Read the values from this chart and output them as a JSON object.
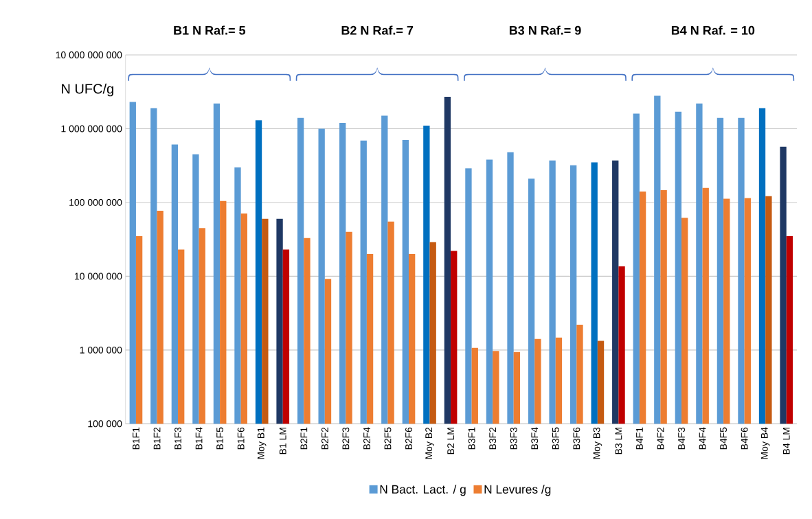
{
  "chart_data": {
    "type": "bar",
    "ylabel": "N UFC/g",
    "log": true,
    "grid": "y",
    "legend": "bottom",
    "categories": [
      "B1F1",
      "B1F2",
      "B1F3",
      "B1F4",
      "B1F5",
      "B1F6",
      "Moy  B1",
      "B1 LM",
      "B2F1",
      "B2F2",
      "B2F3",
      "B2F4",
      "B2F5",
      "B2F6",
      "Moy B2",
      "B2 LM",
      "B3F1",
      "B3F2",
      "B3F3",
      "B3F4",
      "B3F5",
      "B3F6",
      "Moy B3",
      "B3 LM",
      "B4F1",
      "B4F2",
      "B4F3",
      "B4F4",
      "B4F5",
      "B4F6",
      "Moy B4",
      "B4 LM"
    ],
    "series": [
      {
        "name": "N Bact. Lact. / g",
        "color": "#5b9bd5",
        "colors": [
          "#5b9bd5",
          "#5b9bd5",
          "#5b9bd5",
          "#5b9bd5",
          "#5b9bd5",
          "#5b9bd5",
          "#0070c0",
          "#1f3864",
          "#5b9bd5",
          "#5b9bd5",
          "#5b9bd5",
          "#5b9bd5",
          "#5b9bd5",
          "#5b9bd5",
          "#0070c0",
          "#1f3864",
          "#5b9bd5",
          "#5b9bd5",
          "#5b9bd5",
          "#5b9bd5",
          "#5b9bd5",
          "#5b9bd5",
          "#0070c0",
          "#1f3864",
          "#5b9bd5",
          "#5b9bd5",
          "#5b9bd5",
          "#5b9bd5",
          "#5b9bd5",
          "#5b9bd5",
          "#0070c0",
          "#1f3864"
        ],
        "values": [
          2300000000,
          1900000000,
          610000000,
          450000000,
          2200000000,
          300000000,
          1300000000,
          60000000,
          1400000000,
          1000000000,
          1200000000,
          690000000,
          1500000000,
          700000000,
          1100000000,
          2700000000,
          290000000,
          380000000,
          480000000,
          210000000,
          370000000,
          320000000,
          350000000,
          370000000,
          1600000000,
          2800000000,
          1700000000,
          2200000000,
          1400000000,
          1400000000,
          1900000000,
          570000000
        ]
      },
      {
        "name": "N Levures /g",
        "color": "#ed7d31",
        "colors": [
          "#ed7d31",
          "#ed7d31",
          "#ed7d31",
          "#ed7d31",
          "#ed7d31",
          "#ed7d31",
          "#c55a11",
          "#c00000",
          "#ed7d31",
          "#ed7d31",
          "#ed7d31",
          "#ed7d31",
          "#ed7d31",
          "#ed7d31",
          "#c55a11",
          "#c00000",
          "#ed7d31",
          "#ed7d31",
          "#ed7d31",
          "#ed7d31",
          "#ed7d31",
          "#ed7d31",
          "#c55a11",
          "#c00000",
          "#ed7d31",
          "#ed7d31",
          "#ed7d31",
          "#ed7d31",
          "#ed7d31",
          "#ed7d31",
          "#c55a11",
          "#c00000"
        ],
        "values": [
          35000000,
          77000000,
          23000000,
          45000000,
          105000000,
          71000000,
          60000000,
          23000000,
          33000000,
          9200000,
          40000000,
          20000000,
          55000000,
          20000000,
          29000000,
          22000000,
          1070000,
          970000,
          940000,
          1410000,
          1470000,
          2200000,
          1330000,
          13600000,
          141000000,
          147000000,
          62000000,
          157000000,
          112000000,
          115000000,
          122000000,
          35000000
        ]
      }
    ],
    "ylim": [
      100000,
      10000000000
    ],
    "yticks": [
      {
        "value": 100000,
        "label": "100 000"
      },
      {
        "value": 1000000,
        "label": "1 000 000"
      },
      {
        "value": 10000000,
        "label": "10 000 000"
      },
      {
        "value": 100000000,
        "label": "100 000 000"
      },
      {
        "value": 1000000000,
        "label": "1 000 000 000"
      },
      {
        "value": 10000000000,
        "label": "10 000 000 000"
      }
    ],
    "annotations": [
      "B1 N Raf.= 5",
      "B2  N Raf.= 7",
      "B3 N Raf.= 9",
      "B4 N Raf. = 10"
    ]
  }
}
